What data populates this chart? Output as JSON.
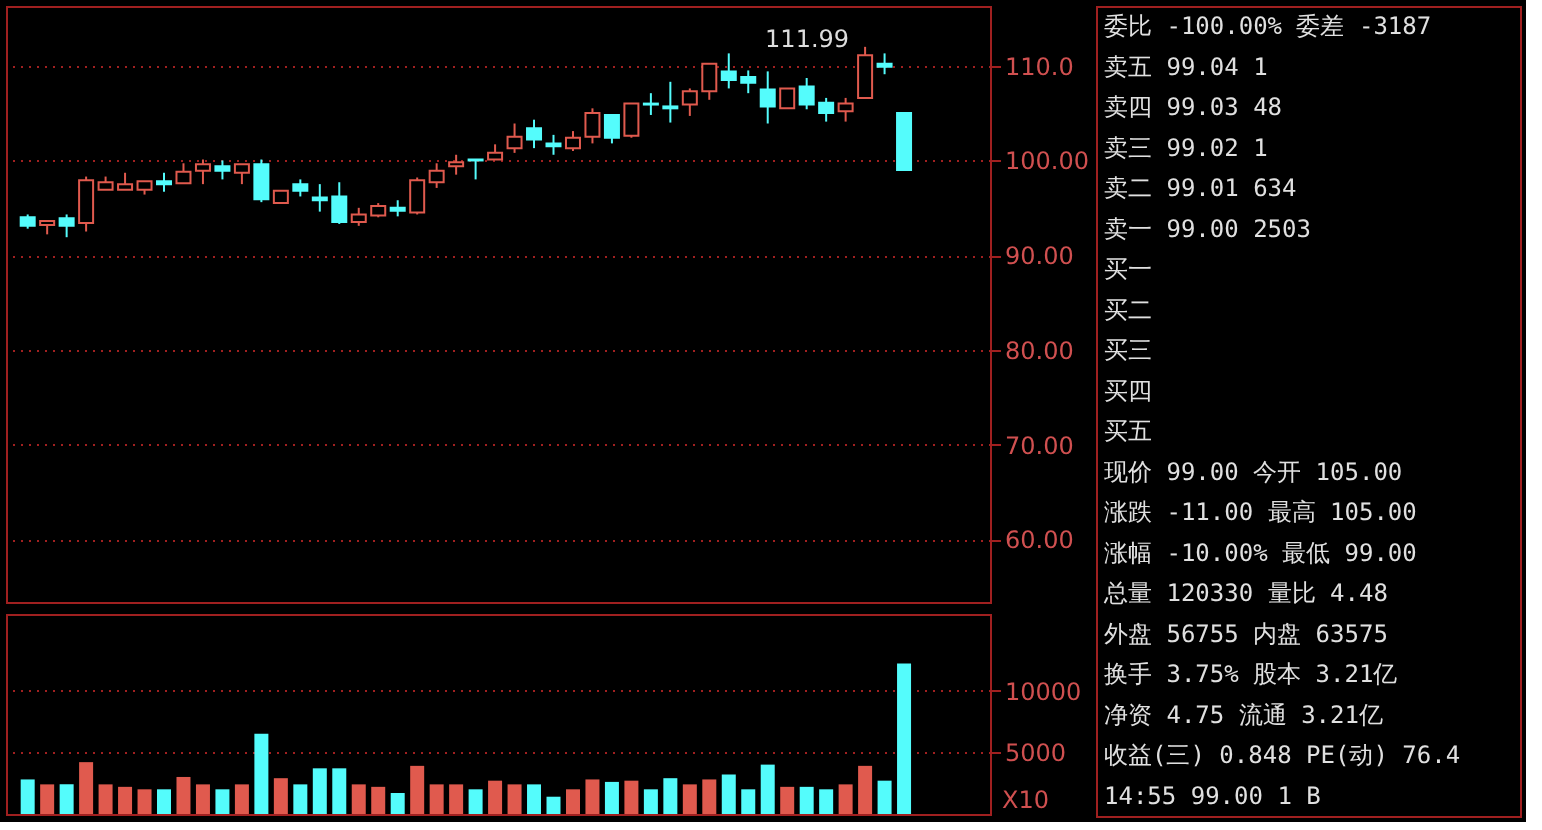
{
  "chart_data": [
    {
      "type": "candlestick",
      "categories": [
        null,
        null,
        null,
        null,
        null,
        null,
        null,
        null,
        null,
        null,
        null,
        null,
        null,
        null,
        null,
        null,
        null,
        null,
        null,
        null,
        null,
        null,
        null,
        null,
        null,
        null,
        null,
        null,
        null,
        null,
        null,
        null,
        null,
        null,
        null,
        null,
        null,
        null,
        null,
        null,
        null,
        null,
        null,
        null,
        null,
        null
      ],
      "ohlc": [
        [
          94.0,
          94.3,
          92.8,
          93.1
        ],
        [
          93.2,
          93.6,
          92.2,
          93.6
        ],
        [
          93.9,
          94.3,
          91.9,
          93.1
        ],
        [
          93.4,
          98.3,
          92.5,
          97.9
        ],
        [
          96.9,
          98.3,
          96.9,
          97.7
        ],
        [
          96.9,
          98.7,
          96.9,
          97.5
        ],
        [
          96.9,
          97.8,
          96.4,
          97.8
        ],
        [
          97.8,
          98.7,
          96.7,
          97.5
        ],
        [
          97.6,
          99.7,
          97.6,
          98.8
        ],
        [
          98.9,
          100.1,
          97.5,
          99.6
        ],
        [
          99.4,
          100.0,
          98.0,
          98.9
        ],
        [
          98.7,
          99.6,
          97.5,
          99.6
        ],
        [
          99.6,
          100.1,
          95.6,
          95.9
        ],
        [
          95.5,
          96.8,
          95.5,
          96.8
        ],
        [
          97.5,
          98.0,
          96.2,
          96.8
        ],
        [
          96.1,
          97.5,
          94.6,
          95.8
        ],
        [
          96.2,
          97.7,
          93.3,
          93.5
        ],
        [
          93.5,
          95.0,
          93.1,
          94.3
        ],
        [
          94.2,
          95.5,
          94.0,
          95.2
        ],
        [
          95.0,
          95.8,
          94.1,
          94.7
        ],
        [
          94.5,
          98.2,
          94.3,
          97.9
        ],
        [
          97.7,
          99.7,
          97.1,
          98.9
        ],
        [
          99.4,
          100.6,
          98.5,
          99.8
        ],
        [
          100.1,
          100.1,
          98.0,
          100.0
        ],
        [
          100.1,
          101.7,
          100.1,
          100.8
        ],
        [
          101.3,
          103.9,
          100.8,
          102.5
        ],
        [
          103.4,
          104.3,
          101.3,
          102.2
        ],
        [
          101.8,
          102.7,
          100.6,
          101.5
        ],
        [
          101.3,
          103.1,
          101.0,
          102.4
        ],
        [
          102.5,
          105.5,
          101.8,
          105.0
        ],
        [
          104.8,
          104.8,
          101.8,
          102.4
        ],
        [
          102.6,
          106.0,
          102.4,
          106.0
        ],
        [
          106.0,
          107.1,
          104.8,
          105.9
        ],
        [
          105.7,
          108.3,
          104.0,
          105.5
        ],
        [
          105.9,
          107.6,
          104.7,
          107.3
        ],
        [
          107.3,
          110.2,
          106.4,
          110.2
        ],
        [
          109.4,
          111.3,
          107.6,
          108.5
        ],
        [
          108.8,
          109.5,
          107.1,
          108.2
        ],
        [
          107.5,
          109.4,
          103.9,
          105.7
        ],
        [
          105.5,
          107.6,
          105.5,
          107.6
        ],
        [
          107.8,
          108.7,
          105.4,
          105.9
        ],
        [
          106.1,
          106.6,
          104.1,
          105.0
        ],
        [
          105.2,
          106.6,
          104.1,
          106.0
        ],
        [
          106.6,
          111.99,
          106.6,
          111.1
        ],
        [
          110.2,
          111.3,
          109.1,
          109.9
        ],
        [
          105.0,
          105.0,
          99.0,
          99.0
        ]
      ],
      "colors": [
        "#54fcfc",
        "#e05a4e",
        "#54fcfc",
        "#e05a4e",
        "#e05a4e",
        "#e05a4e",
        "#e05a4e",
        "#54fcfc",
        "#e05a4e",
        "#e05a4e",
        "#54fcfc",
        "#e05a4e",
        "#54fcfc",
        "#e05a4e",
        "#54fcfc",
        "#54fcfc",
        "#54fcfc",
        "#e05a4e",
        "#e05a4e",
        "#54fcfc",
        "#e05a4e",
        "#e05a4e",
        "#e05a4e",
        "#54fcfc",
        "#e05a4e",
        "#e05a4e",
        "#54fcfc",
        "#54fcfc",
        "#e05a4e",
        "#e05a4e",
        "#54fcfc",
        "#e05a4e",
        "#54fcfc",
        "#54fcfc",
        "#e05a4e",
        "#e05a4e",
        "#54fcfc",
        "#54fcfc",
        "#54fcfc",
        "#e05a4e",
        "#54fcfc",
        "#54fcfc",
        "#e05a4e",
        "#e05a4e",
        "#54fcfc",
        "#54fcfc"
      ],
      "ylim": [
        53.4,
        116.3
      ],
      "yticks": [
        {
          "value": 60,
          "label": "60.00"
        },
        {
          "value": 70,
          "label": "70.00"
        },
        {
          "value": 80,
          "label": "80.00"
        },
        {
          "value": 90,
          "label": "90.00"
        },
        {
          "value": 100,
          "label": "100.00"
        },
        {
          "value": 110,
          "label": "110.0"
        }
      ],
      "grid": "y",
      "tick_labels": "y",
      "annotations": [
        "111.99"
      ]
    },
    {
      "type": "bar",
      "categories": [
        null,
        null,
        null,
        null,
        null,
        null,
        null,
        null,
        null,
        null,
        null,
        null,
        null,
        null,
        null,
        null,
        null,
        null,
        null,
        null,
        null,
        null,
        null,
        null,
        null,
        null,
        null,
        null,
        null,
        null,
        null,
        null,
        null,
        null,
        null,
        null,
        null,
        null,
        null,
        null,
        null,
        null,
        null,
        null,
        null,
        null
      ],
      "values": [
        2800,
        2400,
        2400,
        4200,
        2400,
        2200,
        2000,
        2000,
        3000,
        2400,
        2000,
        2400,
        6500,
        2900,
        2400,
        3700,
        3700,
        2400,
        2200,
        1700,
        3900,
        2400,
        2400,
        2000,
        2700,
        2400,
        2400,
        1400,
        2000,
        2800,
        2600,
        2700,
        2000,
        2900,
        2400,
        2800,
        3200,
        2000,
        4000,
        2200,
        2200,
        2000,
        2400,
        3900,
        2700,
        12200
      ],
      "colors": [
        "#54fcfc",
        "#e05a4e",
        "#54fcfc",
        "#e05a4e",
        "#e05a4e",
        "#e05a4e",
        "#e05a4e",
        "#54fcfc",
        "#e05a4e",
        "#e05a4e",
        "#54fcfc",
        "#e05a4e",
        "#54fcfc",
        "#e05a4e",
        "#54fcfc",
        "#54fcfc",
        "#54fcfc",
        "#e05a4e",
        "#e05a4e",
        "#54fcfc",
        "#e05a4e",
        "#e05a4e",
        "#e05a4e",
        "#54fcfc",
        "#e05a4e",
        "#e05a4e",
        "#54fcfc",
        "#54fcfc",
        "#e05a4e",
        "#e05a4e",
        "#54fcfc",
        "#e05a4e",
        "#54fcfc",
        "#54fcfc",
        "#e05a4e",
        "#e05a4e",
        "#54fcfc",
        "#54fcfc",
        "#54fcfc",
        "#e05a4e",
        "#54fcfc",
        "#54fcfc",
        "#e05a4e",
        "#e05a4e",
        "#54fcfc",
        "#54fcfc"
      ],
      "ylim": [
        0,
        16200
      ],
      "yticks": [
        {
          "value": 5000,
          "label": "5000"
        },
        {
          "value": 10000,
          "label": "10000"
        }
      ],
      "grid": "y",
      "tick_labels": "y",
      "annotations": [
        "X10"
      ]
    },
    {
      "type": "other",
      "annotations": [
        "委比 -100.00% 委差  -3187",
        "卖五     99.04         1",
        "卖四     99.03        48",
        "卖三     99.02         1",
        "卖二     99.01       634",
        "卖一     99.00      2503",
        "买一",
        "买二",
        "买三",
        "买四",
        "买五",
        "现价     99.00 今开  105.00",
        "涨跌    -11.00 最高  105.00",
        "涨幅  -10.00% 最低   99.00",
        "总量    120330 量比    4.48",
        "外盘     56755 内盘   63575",
        "换手     3.75% 股本   3.21亿",
        "净资      4.75 流通   3.21亿",
        "收益(三)  0.848 PE(动)  76.4",
        "14:55     99.00       1 B"
      ]
    }
  ]
}
